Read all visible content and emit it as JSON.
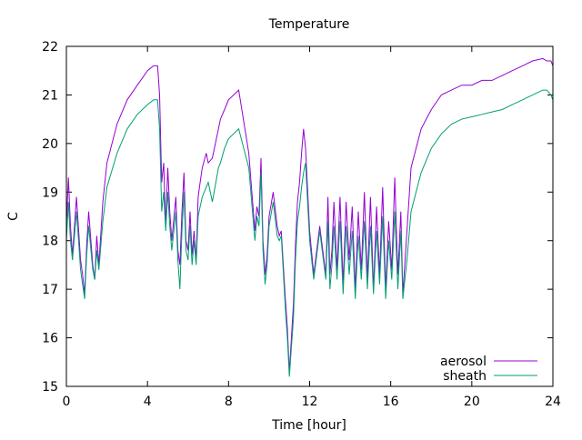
{
  "chart_data": {
    "type": "line",
    "title": "Temperature",
    "xlabel": "Time [hour]",
    "ylabel": "C",
    "xlim": [
      0,
      24
    ],
    "ylim": [
      15,
      22
    ],
    "xticks": [
      0,
      4,
      8,
      12,
      16,
      20,
      24
    ],
    "yticks": [
      15,
      16,
      17,
      18,
      19,
      20,
      21,
      22
    ],
    "grid": false,
    "legend_position": "bottom-right",
    "series": [
      {
        "name": "aerosol",
        "color": "#9400d3",
        "x": [
          0,
          0.1,
          0.2,
          0.3,
          0.5,
          0.7,
          0.8,
          0.9,
          1.0,
          1.1,
          1.3,
          1.4,
          1.5,
          1.6,
          1.8,
          2.0,
          2.5,
          3.0,
          3.5,
          4.0,
          4.3,
          4.5,
          4.6,
          4.7,
          4.8,
          4.9,
          5.0,
          5.1,
          5.2,
          5.4,
          5.5,
          5.6,
          5.7,
          5.8,
          5.9,
          6.0,
          6.1,
          6.2,
          6.3,
          6.4,
          6.5,
          6.6,
          6.7,
          6.9,
          7.0,
          7.2,
          7.5,
          7.6,
          7.8,
          8.0,
          8.5,
          9.0,
          9.3,
          9.4,
          9.5,
          9.6,
          9.7,
          9.8,
          9.9,
          10.0,
          10.2,
          10.4,
          10.5,
          10.6,
          10.8,
          10.9,
          11.0,
          11.2,
          11.3,
          11.4,
          11.5,
          11.6,
          11.7,
          11.8,
          12.0,
          12.2,
          12.5,
          12.8,
          12.9,
          13.0,
          13.1,
          13.2,
          13.35,
          13.5,
          13.65,
          13.8,
          13.95,
          14.1,
          14.25,
          14.4,
          14.55,
          14.7,
          14.85,
          15.0,
          15.15,
          15.3,
          15.45,
          15.6,
          15.75,
          15.9,
          16.05,
          16.2,
          16.35,
          16.5,
          16.6,
          16.8,
          17.0,
          17.5,
          18.0,
          18.5,
          19.0,
          19.5,
          20.0,
          20.5,
          21.0,
          21.5,
          22.0,
          22.5,
          23.0,
          23.5,
          23.7,
          23.9,
          24.0
        ],
        "y": [
          18.3,
          19.3,
          18.3,
          17.7,
          18.9,
          17.6,
          17.3,
          16.9,
          17.9,
          18.6,
          17.5,
          17.2,
          18.1,
          17.5,
          18.8,
          19.6,
          20.4,
          20.9,
          21.2,
          21.5,
          21.6,
          21.6,
          21.0,
          19.2,
          19.6,
          18.3,
          19.5,
          18.6,
          18.0,
          18.9,
          17.8,
          17.5,
          18.6,
          19.4,
          18.0,
          17.8,
          18.6,
          17.7,
          18.2,
          17.6,
          18.9,
          19.2,
          19.5,
          19.8,
          19.6,
          19.7,
          20.3,
          20.5,
          20.7,
          20.9,
          21.1,
          19.8,
          18.2,
          18.7,
          18.5,
          19.7,
          18.0,
          17.3,
          17.7,
          18.5,
          19.0,
          18.3,
          18.1,
          18.2,
          16.8,
          16.2,
          15.3,
          16.7,
          17.9,
          18.8,
          19.2,
          19.8,
          20.3,
          19.9,
          18.2,
          17.3,
          18.3,
          17.3,
          18.9,
          17.3,
          17.8,
          18.8,
          17.4,
          18.9,
          17.1,
          18.8,
          17.6,
          18.7,
          17.0,
          18.6,
          17.4,
          19.0,
          17.2,
          18.9,
          17.0,
          18.7,
          17.3,
          19.1,
          17.0,
          18.4,
          17.4,
          19.3,
          17.3,
          18.6,
          16.9,
          18.2,
          19.5,
          20.3,
          20.7,
          21.0,
          21.1,
          21.2,
          21.2,
          21.3,
          21.3,
          21.4,
          21.5,
          21.6,
          21.7,
          21.75,
          21.7,
          21.7,
          21.6
        ]
      },
      {
        "name": "sheath",
        "color": "#009e73",
        "x": [
          0,
          0.1,
          0.2,
          0.3,
          0.5,
          0.7,
          0.8,
          0.9,
          1.0,
          1.1,
          1.3,
          1.4,
          1.5,
          1.6,
          1.8,
          2.0,
          2.5,
          3.0,
          3.5,
          4.0,
          4.3,
          4.5,
          4.6,
          4.7,
          4.8,
          4.9,
          5.0,
          5.1,
          5.2,
          5.4,
          5.5,
          5.6,
          5.7,
          5.8,
          5.9,
          6.0,
          6.1,
          6.2,
          6.3,
          6.4,
          6.5,
          6.6,
          6.7,
          6.9,
          7.0,
          7.2,
          7.5,
          7.6,
          7.8,
          8.0,
          8.5,
          9.0,
          9.3,
          9.4,
          9.5,
          9.6,
          9.7,
          9.8,
          9.9,
          10.0,
          10.2,
          10.4,
          10.5,
          10.6,
          10.8,
          10.9,
          11.0,
          11.2,
          11.3,
          11.4,
          11.5,
          11.6,
          11.7,
          11.8,
          12.0,
          12.2,
          12.5,
          12.8,
          12.9,
          13.0,
          13.1,
          13.2,
          13.35,
          13.5,
          13.65,
          13.8,
          13.95,
          14.1,
          14.25,
          14.4,
          14.55,
          14.7,
          14.85,
          15.0,
          15.15,
          15.3,
          15.45,
          15.6,
          15.75,
          15.9,
          16.05,
          16.2,
          16.35,
          16.5,
          16.6,
          16.8,
          17.0,
          17.5,
          18.0,
          18.5,
          19.0,
          19.5,
          20.0,
          20.5,
          21.0,
          21.5,
          22.0,
          22.5,
          23.0,
          23.5,
          23.7,
          23.9,
          24.0
        ],
        "y": [
          18.0,
          18.8,
          18.0,
          17.6,
          18.6,
          17.4,
          17.1,
          16.8,
          17.7,
          18.3,
          17.4,
          17.2,
          17.8,
          17.4,
          18.4,
          19.1,
          19.8,
          20.3,
          20.6,
          20.8,
          20.9,
          20.9,
          20.3,
          18.6,
          19.0,
          18.2,
          19.0,
          18.3,
          17.8,
          18.6,
          17.6,
          17.0,
          18.2,
          19.0,
          17.8,
          17.6,
          18.3,
          17.5,
          18.0,
          17.5,
          18.5,
          18.7,
          18.9,
          19.1,
          19.2,
          18.8,
          19.5,
          19.6,
          19.9,
          20.1,
          20.3,
          19.5,
          18.0,
          18.5,
          18.3,
          19.4,
          17.8,
          17.1,
          17.5,
          18.3,
          18.8,
          18.1,
          18.0,
          18.1,
          16.6,
          16.0,
          15.2,
          16.4,
          17.6,
          18.4,
          18.7,
          19.1,
          19.4,
          19.6,
          18.0,
          17.2,
          18.2,
          17.2,
          18.4,
          17.0,
          17.5,
          18.3,
          17.2,
          18.4,
          16.9,
          18.3,
          17.3,
          18.2,
          16.8,
          18.1,
          17.2,
          18.4,
          17.0,
          18.3,
          16.9,
          18.2,
          17.1,
          18.5,
          16.8,
          18.0,
          17.2,
          18.6,
          17.0,
          18.2,
          16.8,
          17.6,
          18.6,
          19.4,
          19.9,
          20.2,
          20.4,
          20.5,
          20.55,
          20.6,
          20.65,
          20.7,
          20.8,
          20.9,
          21.0,
          21.1,
          21.1,
          21.0,
          20.9
        ]
      }
    ]
  }
}
